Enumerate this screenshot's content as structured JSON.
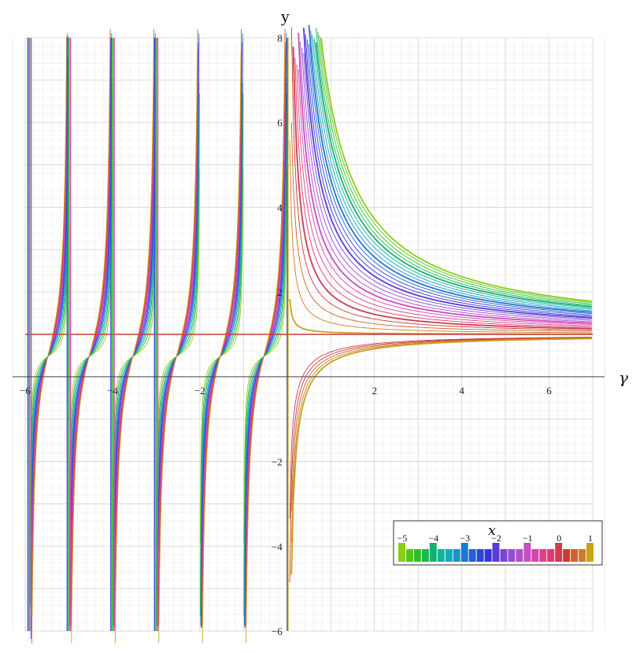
{
  "chart_data": {
    "type": "line",
    "title": "",
    "xlabel": "γ",
    "ylabel": "y",
    "xlim": [
      -6,
      7
    ],
    "ylim": [
      -6,
      8
    ],
    "grid": true,
    "minor_grid": true,
    "x_ticks": [
      {
        "value": -6,
        "label": "−6"
      },
      {
        "value": -4,
        "label": "−4"
      },
      {
        "value": -2,
        "label": "−2"
      },
      {
        "value": 2,
        "label": "2"
      },
      {
        "value": 4,
        "label": "4"
      },
      {
        "value": 6,
        "label": "6"
      }
    ],
    "y_ticks": [
      {
        "value": 8,
        "label": "8"
      },
      {
        "value": 6,
        "label": "6"
      },
      {
        "value": 4,
        "label": "4"
      },
      {
        "value": 2,
        "label": "2"
      },
      {
        "value": -2,
        "label": "−2"
      },
      {
        "value": -4,
        "label": "−4"
      },
      {
        "value": -6,
        "label": "−6"
      }
    ],
    "horizontal_asymptote_y": 1,
    "vertical_asymptotes_x": [
      -5.9,
      -5,
      -4,
      -3,
      -2,
      -1,
      0
    ],
    "curves": {
      "param_name": "x",
      "param_range": [
        -5,
        1
      ],
      "param_step": 0.25,
      "family": "y(γ) for parameter x, hyperbola-like branches"
    },
    "legend": {
      "title": "x",
      "placement": "bottom-right",
      "ticks": [
        {
          "value": -5,
          "label": "−5"
        },
        {
          "value": -4,
          "label": "−4"
        },
        {
          "value": -3,
          "label": "−3"
        },
        {
          "value": -2,
          "label": "−2"
        },
        {
          "value": -1,
          "label": "−1"
        },
        {
          "value": 0,
          "label": "0"
        },
        {
          "value": 1,
          "label": "1"
        }
      ],
      "colors": [
        "#8ccc1a",
        "#4fc61a",
        "#2fbf2c",
        "#19b848",
        "#14b072",
        "#10b49a",
        "#12a9b8",
        "#1b93c8",
        "#1f78cf",
        "#2460d4",
        "#2a47d8",
        "#3435d6",
        "#5b3bd8",
        "#7a44d9",
        "#974cd6",
        "#b24fce",
        "#c94cc2",
        "#d944a8",
        "#df3e8c",
        "#dc3a70",
        "#d23a52",
        "#c93b35",
        "#d0602d",
        "#cc7d26",
        "#c9a21e"
      ]
    }
  }
}
